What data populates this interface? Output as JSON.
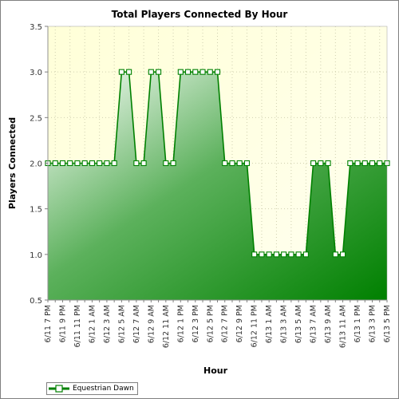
{
  "chart_data": {
    "type": "area",
    "title": "Total Players Connected By Hour",
    "xlabel": "Hour",
    "ylabel": "Players Connected",
    "ylim": [
      0.5,
      3.5
    ],
    "yticks": [
      "0.5",
      "1.0",
      "1.5",
      "2.0",
      "2.5",
      "3.0",
      "3.5"
    ],
    "x_tick_labels": [
      "6/11 7 PM",
      "6/11 9 PM",
      "6/11 11 PM",
      "6/12 1 AM",
      "6/12 3 AM",
      "6/12 5 AM",
      "6/12 7 AM",
      "6/12 9 AM",
      "6/12 11 AM",
      "6/12 1 PM",
      "6/12 3 PM",
      "6/12 5 PM",
      "6/12 7 PM",
      "6/12 9 PM",
      "6/12 11 PM",
      "6/13 1 AM",
      "6/13 3 AM",
      "6/13 5 AM",
      "6/13 7 AM",
      "6/13 9 AM",
      "6/13 11 AM",
      "6/13 1 PM",
      "6/13 3 PM",
      "6/13 5 PM"
    ],
    "series": [
      {
        "name": "Equestrian Dawn",
        "color": "#008000",
        "values": [
          2,
          2,
          2,
          2,
          2,
          2,
          2,
          2,
          2,
          2,
          3,
          3,
          2,
          2,
          3,
          3,
          2,
          2,
          3,
          3,
          3,
          3,
          3,
          3,
          2,
          2,
          2,
          2,
          1,
          1,
          1,
          1,
          1,
          1,
          1,
          1,
          2,
          2,
          2,
          1,
          1,
          2,
          2,
          2,
          2,
          2,
          2
        ]
      }
    ],
    "grid": true,
    "legend_position": "bottom-left"
  }
}
